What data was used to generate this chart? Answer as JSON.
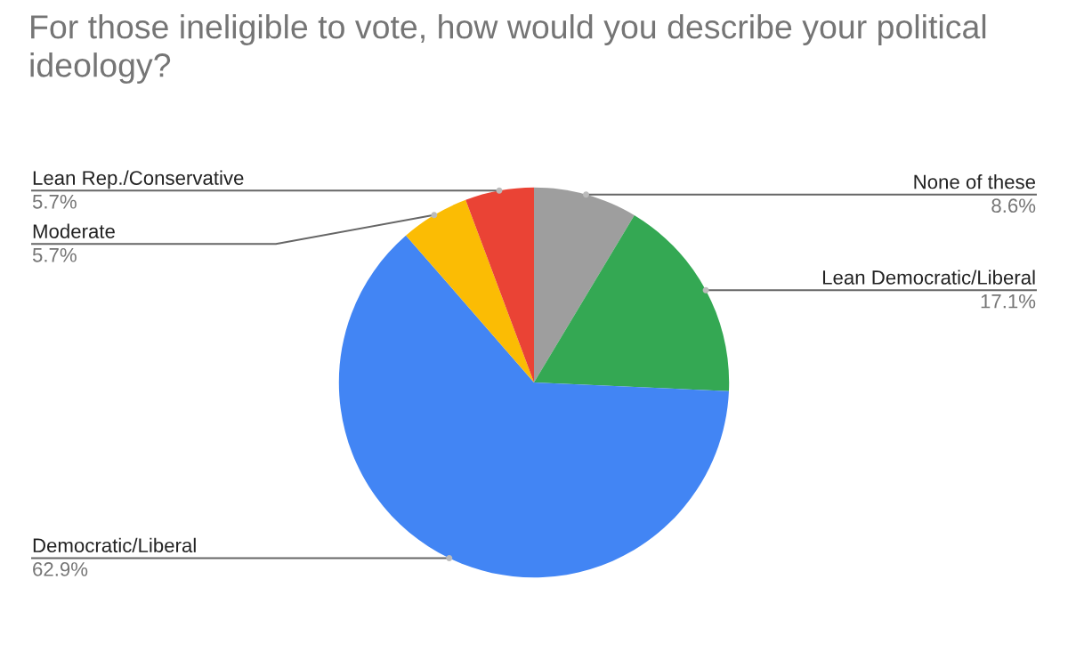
{
  "chart_data": {
    "type": "pie",
    "title": "For those ineligible to vote, how would you describe your political ideology?",
    "categories": [
      "None of these",
      "Lean Democratic/Liberal",
      "Democratic/Liberal",
      "Moderate",
      "Lean Rep./Conservative"
    ],
    "values": [
      8.6,
      17.1,
      62.9,
      5.7,
      5.7
    ],
    "colors": [
      "#9e9e9e",
      "#34a853",
      "#4285f4",
      "#fbbc04",
      "#ea4335"
    ],
    "value_labels": [
      "8.6%",
      "17.1%",
      "62.9%",
      "5.7%",
      "5.7%"
    ],
    "legend": false
  }
}
